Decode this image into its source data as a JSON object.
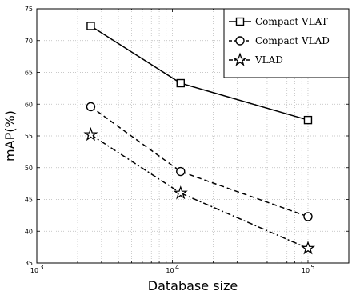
{
  "chart_data": {
    "type": "line",
    "xlabel": "Database size",
    "ylabel": "mAP(%)",
    "xscale": "log",
    "xlim": [
      1000,
      200000
    ],
    "ylim": [
      35,
      75
    ],
    "xticks": [
      {
        "value": 1000,
        "base": "10",
        "exp": "3"
      },
      {
        "value": 10000,
        "base": "10",
        "exp": "4"
      },
      {
        "value": 100000,
        "base": "10",
        "exp": "5"
      }
    ],
    "yticks": [
      35,
      40,
      45,
      50,
      55,
      60,
      65,
      70,
      75
    ],
    "grid": true,
    "legend_position": "top-right",
    "series": [
      {
        "name": "Compact VLAT",
        "marker": "square",
        "dash": "solid",
        "x": [
          2500,
          11500,
          100000
        ],
        "y": [
          72.3,
          63.3,
          57.5
        ]
      },
      {
        "name": "Compact VLAD",
        "marker": "circle",
        "dash": "dashed",
        "x": [
          2500,
          11500,
          100000
        ],
        "y": [
          59.6,
          49.4,
          42.3
        ]
      },
      {
        "name": "VLAD",
        "marker": "star",
        "dash": "dashdot",
        "x": [
          2500,
          11500,
          100000
        ],
        "y": [
          55.2,
          46.0,
          37.3
        ]
      }
    ]
  }
}
